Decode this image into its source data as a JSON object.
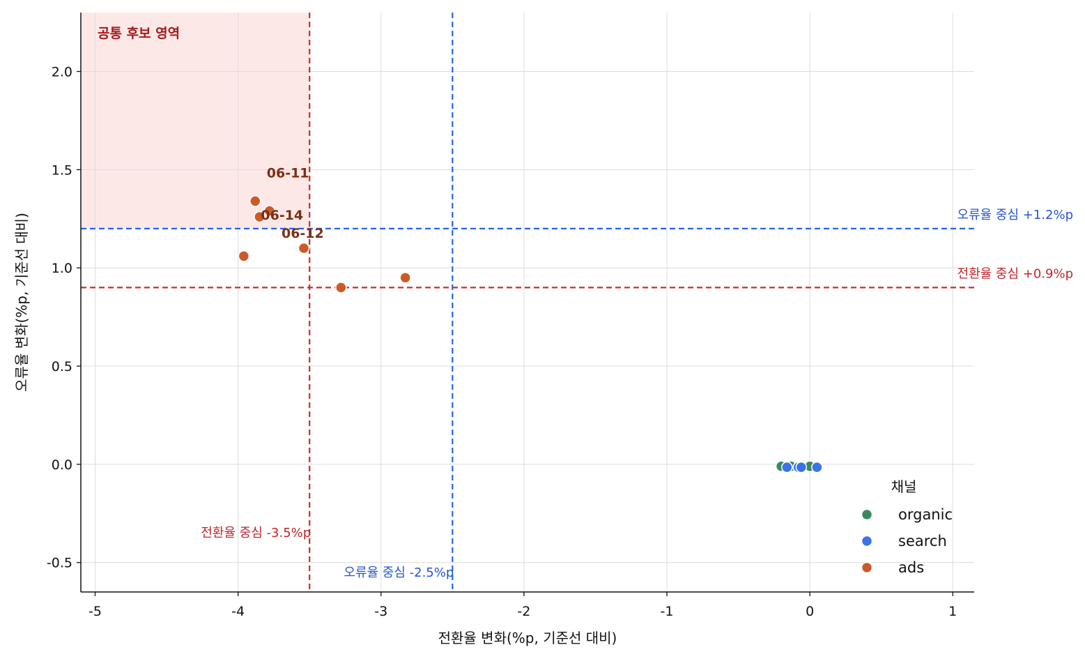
{
  "chart_data": {
    "type": "scatter",
    "xlabel": "전환율 변화(%p, 기준선 대비)",
    "ylabel": "오류율 변화(%p, 기준선 대비)",
    "xlim": [
      -5.1,
      1.15
    ],
    "ylim": [
      -0.65,
      2.3
    ],
    "x_ticks": [
      -5,
      -4,
      -3,
      -2,
      -1,
      0,
      1
    ],
    "y_ticks": [
      -0.5,
      0.0,
      0.5,
      1.0,
      1.5,
      2.0
    ],
    "x_tick_labels": [
      "-5",
      "-4",
      "-3",
      "-2",
      "-1",
      "0",
      "1"
    ],
    "y_tick_labels": [
      "-0.5",
      "0.0",
      "0.5",
      "1.0",
      "1.5",
      "2.0"
    ],
    "grid": true,
    "region": {
      "label": "공통 후보 영역",
      "x_range": [
        -5.1,
        -3.5
      ],
      "y_range": [
        1.2,
        2.3
      ],
      "color": "#fde8e8"
    },
    "reference_lines": [
      {
        "axis": "x",
        "value": -3.5,
        "color": "#d62728",
        "label": "전환율 중심 -3.5%p"
      },
      {
        "axis": "x",
        "value": -2.5,
        "color": "#2563eb",
        "label": "오류율 중심 -2.5%p"
      },
      {
        "axis": "y",
        "value": 1.2,
        "color": "#2563eb",
        "label": "오류율 중심 +1.2%p"
      },
      {
        "axis": "y",
        "value": 0.9,
        "color": "#d62728",
        "label": "전환율 중심 +0.9%p"
      }
    ],
    "legend": {
      "title": "채널",
      "placement": "bottom-right"
    },
    "series": [
      {
        "name": "organic",
        "color": "#3a8a5c",
        "points": [
          {
            "x": -0.2,
            "y": -0.01
          },
          {
            "x": -0.13,
            "y": -0.01
          },
          {
            "x": -0.06,
            "y": -0.01
          },
          {
            "x": 0.0,
            "y": -0.01
          }
        ]
      },
      {
        "name": "search",
        "color": "#3b72e8",
        "points": [
          {
            "x": -0.16,
            "y": -0.015
          },
          {
            "x": -0.08,
            "y": -0.015
          },
          {
            "x": -0.06,
            "y": -0.015
          },
          {
            "x": 0.05,
            "y": -0.015
          }
        ]
      },
      {
        "name": "ads",
        "color": "#cc5a28",
        "points": [
          {
            "x": -3.88,
            "y": 1.34
          },
          {
            "x": -3.78,
            "y": 1.29,
            "label": "06-11"
          },
          {
            "x": -3.85,
            "y": 1.26,
            "label": "06-14"
          },
          {
            "x": -3.54,
            "y": 1.1,
            "label": "06-12"
          },
          {
            "x": -3.96,
            "y": 1.06
          },
          {
            "x": -3.28,
            "y": 0.9
          },
          {
            "x": -2.83,
            "y": 0.95
          }
        ]
      }
    ]
  }
}
